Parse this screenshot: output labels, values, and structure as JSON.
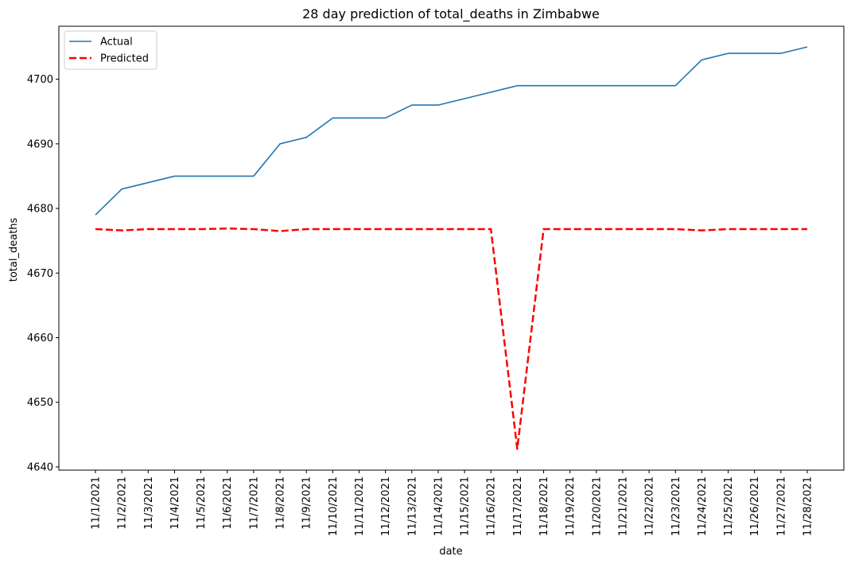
{
  "chart_data": {
    "type": "line",
    "title": "28 day prediction of total_deaths in Zimbabwe",
    "xlabel": "date",
    "ylabel": "total_deaths",
    "x": [
      "11/1/2021",
      "11/2/2021",
      "11/3/2021",
      "11/4/2021",
      "11/5/2021",
      "11/6/2021",
      "11/7/2021",
      "11/8/2021",
      "11/9/2021",
      "11/10/2021",
      "11/11/2021",
      "11/12/2021",
      "11/13/2021",
      "11/14/2021",
      "11/15/2021",
      "11/16/2021",
      "11/17/2021",
      "11/18/2021",
      "11/19/2021",
      "11/20/2021",
      "11/21/2021",
      "11/22/2021",
      "11/23/2021",
      "11/24/2021",
      "11/25/2021",
      "11/26/2021",
      "11/27/2021",
      "11/28/2021"
    ],
    "yticks": [
      4640,
      4650,
      4660,
      4670,
      4680,
      4690,
      4700
    ],
    "ylim": [
      4639.5,
      4708.2
    ],
    "grid": false,
    "legend": "top-left",
    "series": [
      {
        "name": "Actual",
        "color": "#1f77b4",
        "style": "solid",
        "values": [
          4679,
          4683,
          4684,
          4685,
          4685,
          4685,
          4685,
          4690,
          4691,
          4694,
          4694,
          4694,
          4696,
          4696,
          4697,
          4698,
          4699,
          4699,
          4699,
          4699,
          4699,
          4699,
          4699,
          4703,
          4704,
          4704,
          4704,
          4705
        ]
      },
      {
        "name": "Predicted",
        "color": "#ff0000",
        "style": "dashed",
        "values": [
          4676.8,
          4676.6,
          4676.8,
          4676.8,
          4676.8,
          4676.9,
          4676.8,
          4676.5,
          4676.8,
          4676.8,
          4676.8,
          4676.8,
          4676.8,
          4676.8,
          4676.8,
          4676.8,
          4642.8,
          4676.8,
          4676.8,
          4676.8,
          4676.8,
          4676.8,
          4676.8,
          4676.6,
          4676.8,
          4676.8,
          4676.8,
          4676.8
        ]
      }
    ]
  }
}
